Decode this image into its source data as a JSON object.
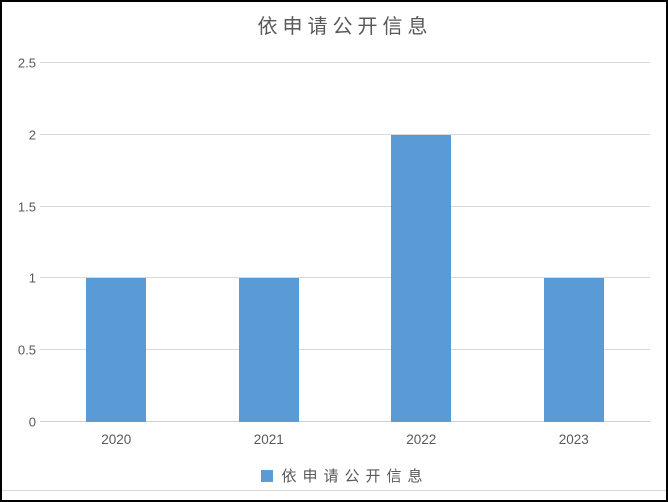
{
  "window": {
    "frame_border_color": "#000000",
    "background_color": "#ffffff",
    "bottom_divider_color": "#d9d9d9"
  },
  "chart_data": {
    "type": "bar",
    "title": "依申请公开信息",
    "categories": [
      "2020",
      "2021",
      "2022",
      "2023"
    ],
    "series": [
      {
        "name": "依申请公开信息",
        "values": [
          1,
          1,
          2,
          1
        ]
      }
    ],
    "xlabel": "",
    "ylabel": "",
    "ylim": [
      0,
      2.5
    ],
    "y_ticks": [
      "0",
      "0.5",
      "1",
      "1.5",
      "2",
      "2.5"
    ],
    "grid": "horizontal gridlines on",
    "legend_position": "bottom",
    "bar_color": "#5b9bd5",
    "gridline_color": "#d9d9d9",
    "axis_line_color": "#cfcfcf",
    "tick_label_color": "#595959",
    "title_color": "#595959"
  },
  "legend": {
    "label": "依申请公开信息",
    "marker_color": "#5b9bd5"
  }
}
